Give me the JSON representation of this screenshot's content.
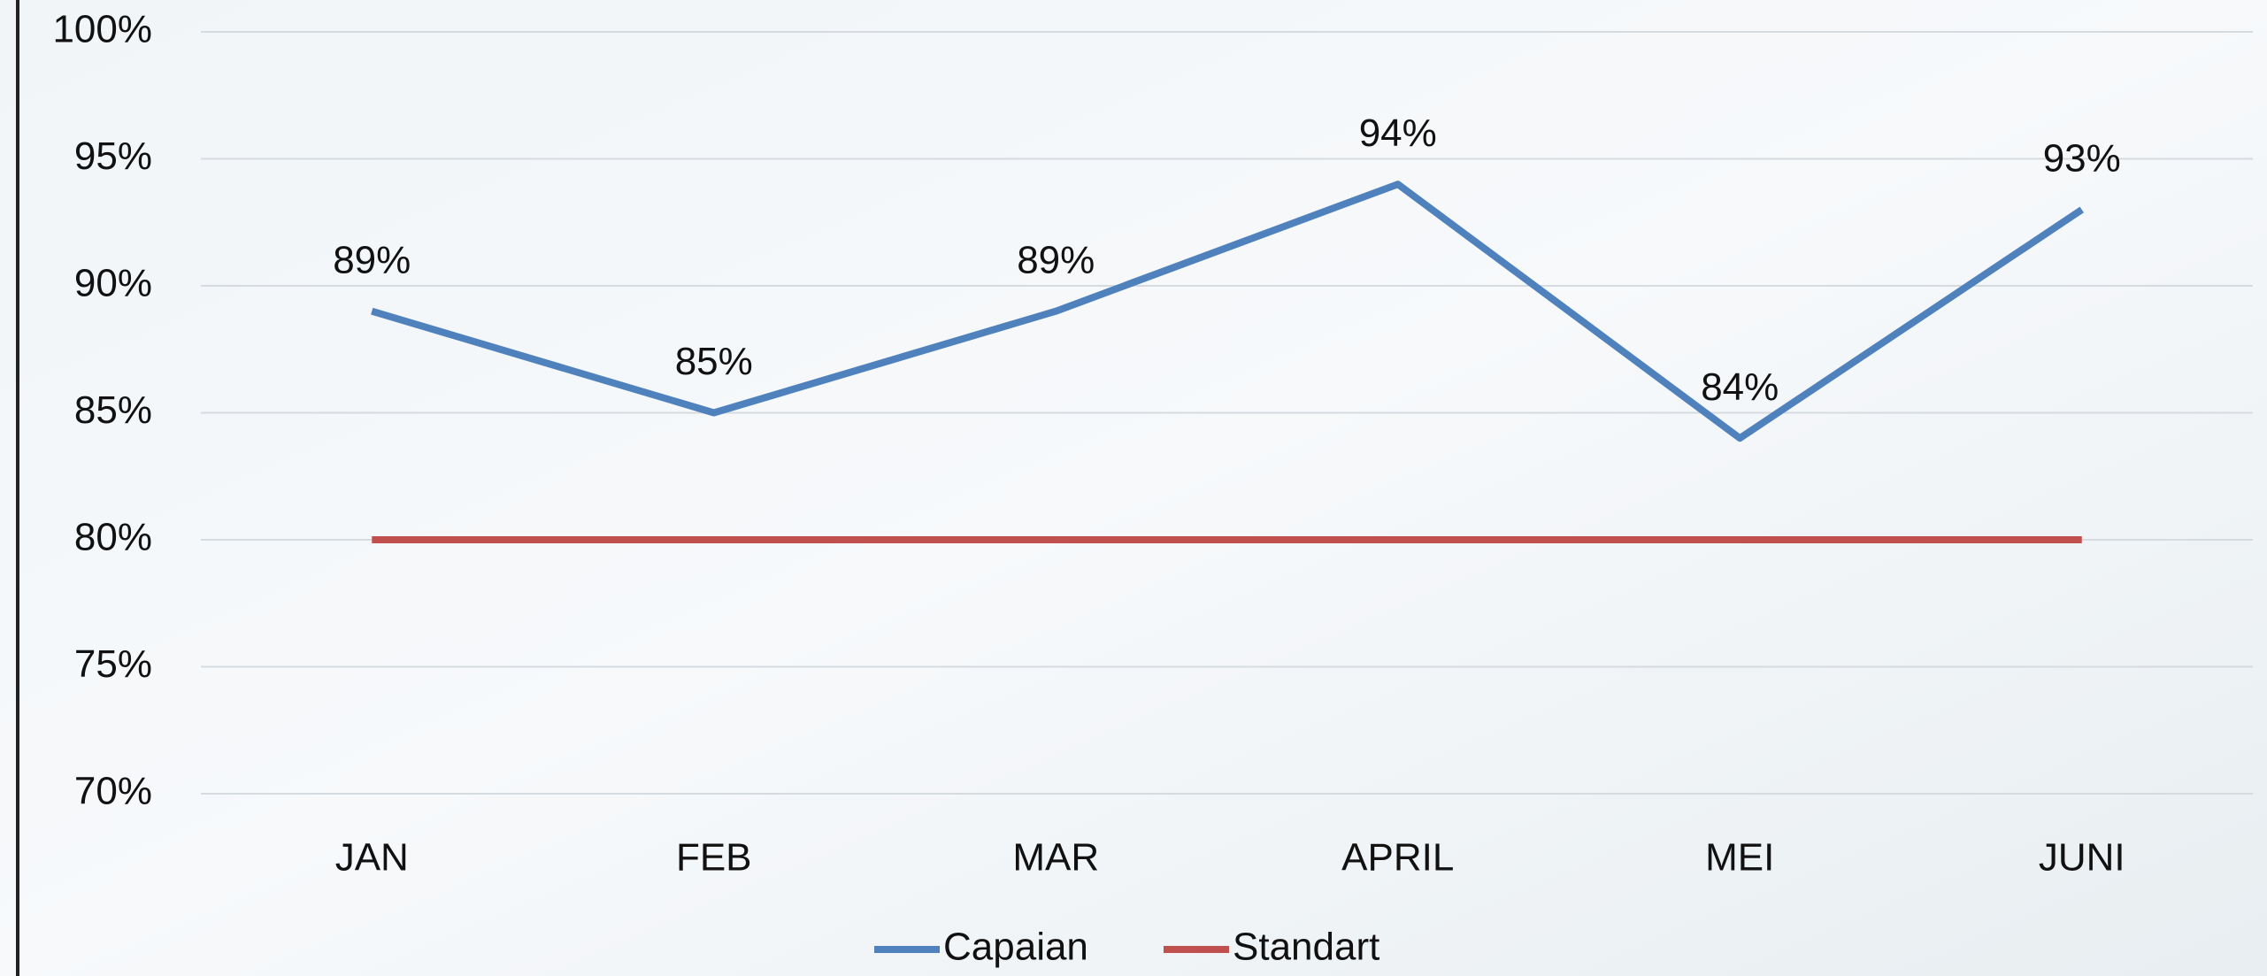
{
  "chart_data": {
    "type": "line",
    "categories": [
      "JAN",
      "FEB",
      "MAR",
      "APRIL",
      "MEI",
      "JUNI"
    ],
    "series": [
      {
        "name": "Capaian",
        "color": "#4f81bd",
        "values": [
          89,
          85,
          89,
          94,
          84,
          93
        ],
        "value_labels": [
          "89%",
          "85%",
          "89%",
          "94%",
          "84%",
          "93%"
        ]
      },
      {
        "name": "Standart",
        "color": "#c0504d",
        "values": [
          80,
          80,
          80,
          80,
          80,
          80
        ]
      }
    ],
    "ylim": [
      70,
      100
    ],
    "yticks": [
      {
        "value": 70,
        "label": "70%"
      },
      {
        "value": 75,
        "label": "75%"
      },
      {
        "value": 80,
        "label": "80%"
      },
      {
        "value": 85,
        "label": "85%"
      },
      {
        "value": 90,
        "label": "90%"
      },
      {
        "value": 95,
        "label": "95%"
      },
      {
        "value": 100,
        "label": "100%"
      }
    ],
    "grid": true,
    "legend": "bottom"
  }
}
